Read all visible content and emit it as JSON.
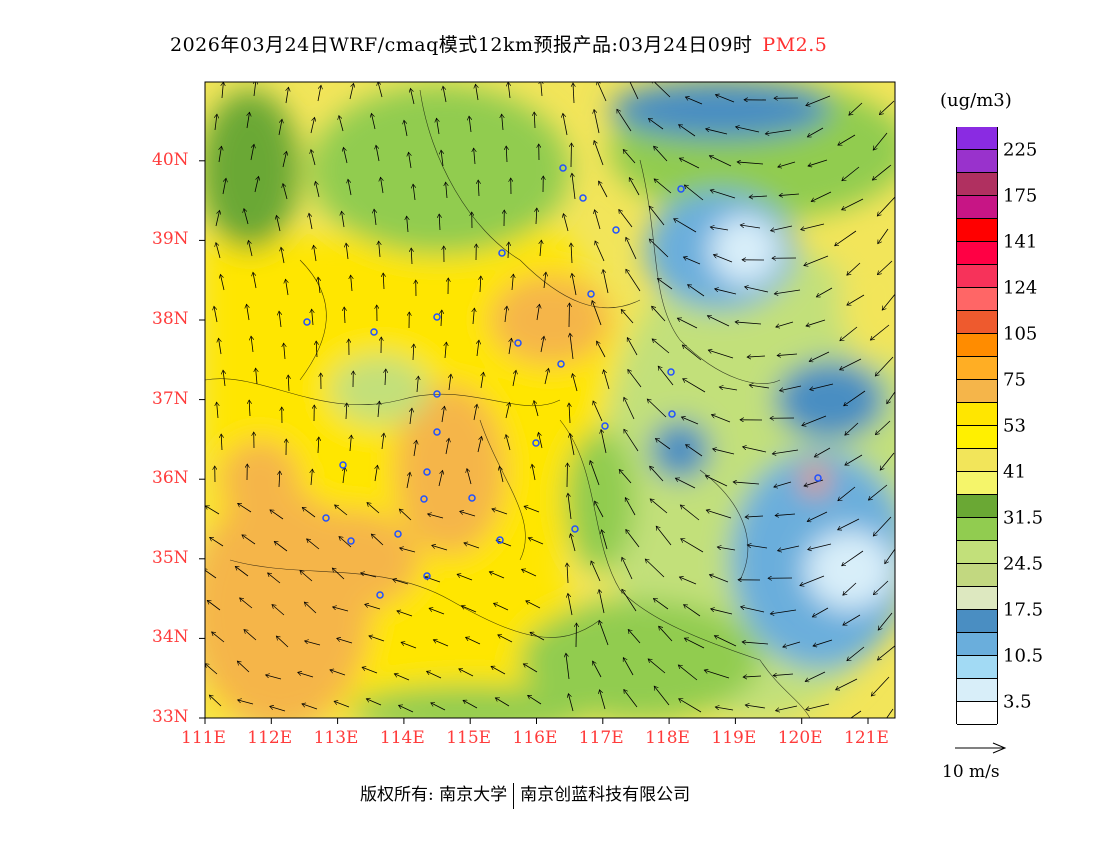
{
  "title": {
    "main": "2026年03月24日WRF/cmaq模式12km预报产品:03月24日09时",
    "pollutant": "PM2.5"
  },
  "axes": {
    "lat_labels": [
      "33N",
      "34N",
      "35N",
      "36N",
      "37N",
      "38N",
      "39N",
      "40N"
    ],
    "lon_labels": [
      "111E",
      "112E",
      "113E",
      "114E",
      "115E",
      "116E",
      "117E",
      "118E",
      "119E",
      "120E",
      "121E"
    ]
  },
  "legend": {
    "unit": "(ug/m3)",
    "colors": [
      "#8a2be2",
      "#9932cc",
      "#b03060",
      "#c71585",
      "#ff0000",
      "#ff0044",
      "#f7325a",
      "#ff6666",
      "#ee5a2e",
      "#ff8c00",
      "#ffae24",
      "#f5b54a",
      "#ffe600",
      "#fff000",
      "#f2e55a",
      "#f5f56a",
      "#6aa834",
      "#91cc50",
      "#c2e07a",
      "#c2d880",
      "#dde8c0",
      "#4a8ec2",
      "#6aaedc",
      "#a2daf4",
      "#d8eef9",
      "#ffffff"
    ],
    "labels": [
      "225",
      "175",
      "141",
      "124",
      "105",
      "75",
      "53",
      "41",
      "31.5",
      "24.5",
      "17.5",
      "10.5",
      "3.5"
    ],
    "vector_label": "10 m/s"
  },
  "footer": {
    "left": "版权所有: 南京大学",
    "right": "南京创蓝科技有限公司"
  }
}
